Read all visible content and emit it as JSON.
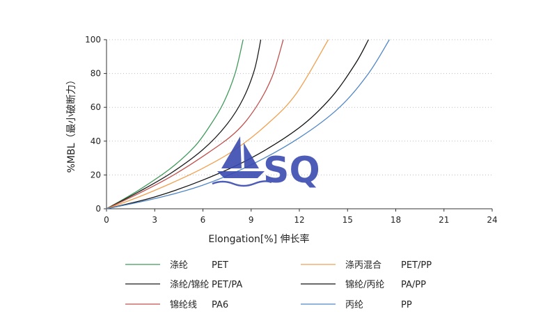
{
  "chart_data": {
    "type": "line",
    "xlabel": "Elongation[%]  伸长率",
    "ylabel": "%MBL（最小破断力）",
    "xlim": [
      0,
      24
    ],
    "ylim": [
      0,
      100
    ],
    "x_ticks": [
      "0",
      "3",
      "6",
      "9",
      "12",
      "15",
      "18",
      "21",
      "24"
    ],
    "y_ticks": [
      "0",
      "20",
      "40",
      "60",
      "80",
      "100"
    ],
    "grid": "horizontal dotted",
    "legend_position": "bottom",
    "series": [
      {
        "name": "涤纶",
        "code": "PET",
        "color": "#3f9a5a",
        "x": [
          0,
          2,
          4,
          5.5,
          6.5,
          7.3,
          8,
          8.5
        ],
        "y": [
          0,
          11,
          24,
          37,
          50,
          63,
          80,
          100
        ]
      },
      {
        "name": "涤纶/锦纶",
        "code": "PET/PA",
        "color": "#1a1a1a",
        "x": [
          0,
          2,
          4,
          6,
          7.5,
          8.5,
          9.2,
          9.6
        ],
        "y": [
          0,
          10,
          21,
          35,
          50,
          65,
          82,
          100
        ]
      },
      {
        "name": "锦纶线",
        "code": "PA6",
        "color": "#c0504d",
        "x": [
          0,
          2,
          4,
          6,
          8,
          9.3,
          10.3,
          11
        ],
        "y": [
          0,
          9,
          19,
          31,
          45,
          60,
          78,
          100
        ]
      },
      {
        "name": "涤丙混合",
        "code": "PET/PP",
        "color": "#f0a050",
        "x": [
          0,
          2,
          4,
          6,
          8,
          10,
          11.8,
          13.8
        ],
        "y": [
          0,
          7,
          15,
          24,
          35,
          50,
          68,
          100
        ]
      },
      {
        "name": "锦纶/丙纶",
        "code": "PA/PP",
        "color": "#111111",
        "x": [
          0,
          3,
          6,
          9,
          12,
          14,
          15.5,
          16.3
        ],
        "y": [
          0,
          7,
          17,
          30,
          48,
          66,
          86,
          100
        ]
      },
      {
        "name": "丙纶",
        "code": "PP",
        "color": "#4f86c6",
        "x": [
          0,
          3,
          6,
          9,
          12,
          14.5,
          16.3,
          17.6
        ],
        "y": [
          0,
          6,
          14,
          26,
          42,
          60,
          80,
          100
        ]
      }
    ],
    "watermark": "SQ"
  }
}
